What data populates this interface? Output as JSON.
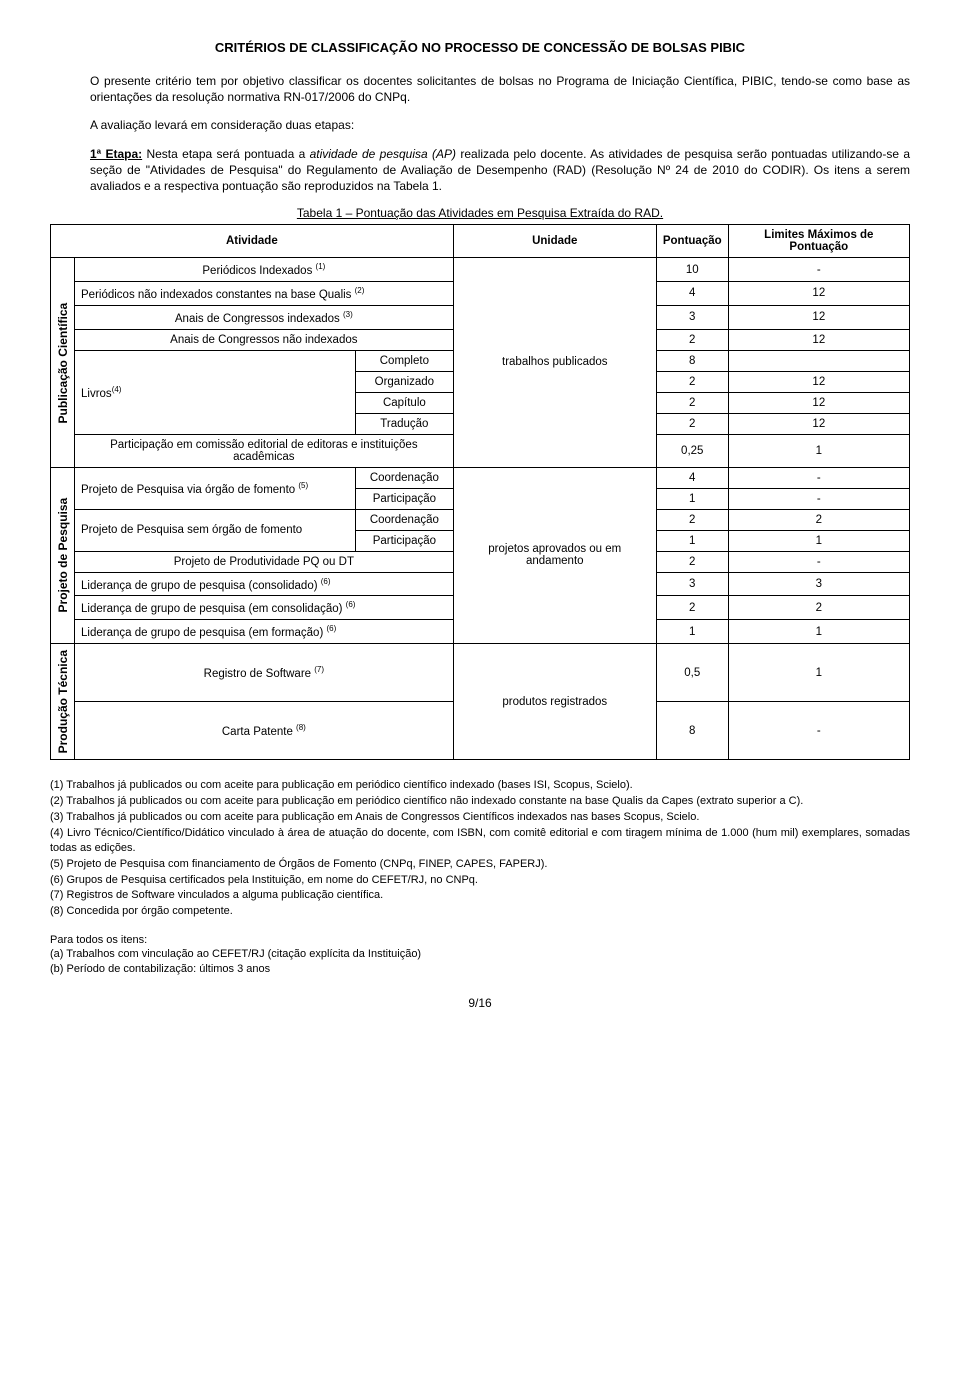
{
  "title": "CRITÉRIOS DE CLASSIFICAÇÃO NO PROCESSO DE CONCESSÃO DE BOLSAS PIBIC",
  "paragraph1": "O presente critério tem por objetivo classificar os docentes solicitantes de bolsas no Programa de Iniciação Científica, PIBIC, tendo-se como base as orientações da resolução normativa RN-017/2006 do CNPq.",
  "paragraph2": "A avaliação levará em consideração duas etapas:",
  "etapa1_label": "1ª Etapa:",
  "etapa1_text1": " Nesta etapa será pontuada a ",
  "etapa1_italic": "atividade de pesquisa (AP)",
  "etapa1_text2": " realizada pelo docente. As atividades de pesquisa serão pontuadas utilizando-se a seção de \"Atividades de Pesquisa\" do Regulamento de Avaliação de Desempenho (RAD) (Resolução Nº 24 de 2010 do CODIR). Os itens a serem avaliados e a respectiva pontuação são reproduzidos na Tabela 1.",
  "table_caption": "Tabela 1 – Pontuação das Atividades em Pesquisa Extraída do RAD.",
  "headers": {
    "atividade": "Atividade",
    "unidade": "Unidade",
    "pontuacao": "Pontuação",
    "limites": "Limites Máximos de Pontuação"
  },
  "sections": {
    "pub": "Publicação Científica",
    "proj": "Projeto de Pesquisa",
    "prod": "Produção Técnica"
  },
  "units": {
    "trabalhos": "trabalhos publicados",
    "projetos": "projetos aprovados ou em andamento",
    "produtos": "produtos registrados"
  },
  "pub_rows": {
    "r1": "Periódicos Indexados ",
    "r2": "Periódicos não indexados constantes na base Qualis ",
    "r3": "Anais de Congressos indexados ",
    "r4": "Anais de Congressos não indexados",
    "livros": "Livros",
    "r5": "Completo",
    "r6": "Organizado",
    "r7": "Capítulo",
    "r8": "Tradução",
    "r9": "Participação em comissão editorial de editoras e instituições acadêmicas"
  },
  "pub_vals": {
    "r1p": "10",
    "r1l": "-",
    "r2p": "4",
    "r2l": "12",
    "r3p": "3",
    "r3l": "12",
    "r4p": "2",
    "r4l": "12",
    "r5p": "8",
    "r5l": "",
    "r6p": "2",
    "r6l": "12",
    "r7p": "2",
    "r7l": "12",
    "r8p": "2",
    "r8l": "12",
    "r9p": "0,25",
    "r9l": "1"
  },
  "proj_rows": {
    "g1": "Projeto de Pesquisa via órgão de fomento ",
    "g2": "Projeto de Pesquisa sem órgão de fomento",
    "coord": "Coordenação",
    "part": "Participação",
    "pq": "Projeto de Produtividade PQ ou DT",
    "lid1": "Liderança de grupo de pesquisa (consolidado) ",
    "lid2": "Liderança de grupo de pesquisa (em consolidação) ",
    "lid3": "Liderança de grupo de pesquisa (em formação) "
  },
  "proj_vals": {
    "g1cp": "4",
    "g1cl": "-",
    "g1pp": "1",
    "g1pl": "-",
    "g2cp": "2",
    "g2cl": "2",
    "g2pp": "1",
    "g2pl": "1",
    "pqp": "2",
    "pql": "-",
    "l1p": "3",
    "l1l": "3",
    "l2p": "2",
    "l2l": "2",
    "l3p": "1",
    "l3l": "1"
  },
  "prod_rows": {
    "soft": "Registro de Software ",
    "patente": "Carta Patente "
  },
  "prod_vals": {
    "sp": "0,5",
    "sl": "1",
    "pp": "8",
    "pl": "-"
  },
  "sup": {
    "s1": "(1)",
    "s2": "(2)",
    "s3": "(3)",
    "s4": "(4)",
    "s5": "(5)",
    "s6": "(6)",
    "s7": "(7)",
    "s8": "(8)"
  },
  "notes": {
    "n1": "(1) Trabalhos já publicados ou com aceite para publicação em periódico científico indexado (bases ISI, Scopus, Scielo).",
    "n2": "(2) Trabalhos já publicados ou com aceite para publicação em periódico científico não indexado constante na base Qualis da Capes (extrato superior a C).",
    "n3": "(3) Trabalhos já publicados ou com aceite para publicação em Anais de Congressos Científicos indexados nas bases Scopus, Scielo.",
    "n4": "(4) Livro Técnico/Científico/Didático vinculado à área de atuação do docente, com ISBN, com comitê editorial e com tiragem mínima de 1.000 (hum mil) exemplares, somadas todas as edições.",
    "n5": "(5) Projeto de Pesquisa com financiamento de Órgãos de Fomento (CNPq, FINEP, CAPES, FAPERJ).",
    "n6": "(6) Grupos de Pesquisa certificados pela Instituição, em nome do CEFET/RJ, no CNPq.",
    "n7": "(7) Registros de Software vinculados a alguma publicação científica.",
    "n8": "(8) Concedida por órgão competente."
  },
  "all_items": {
    "title": "Para todos os itens:",
    "a": "(a) Trabalhos com vinculação ao CEFET/RJ (citação explícita da Instituição)",
    "b": "(b) Período de contabilização: últimos 3 anos"
  },
  "pager": "9/16"
}
